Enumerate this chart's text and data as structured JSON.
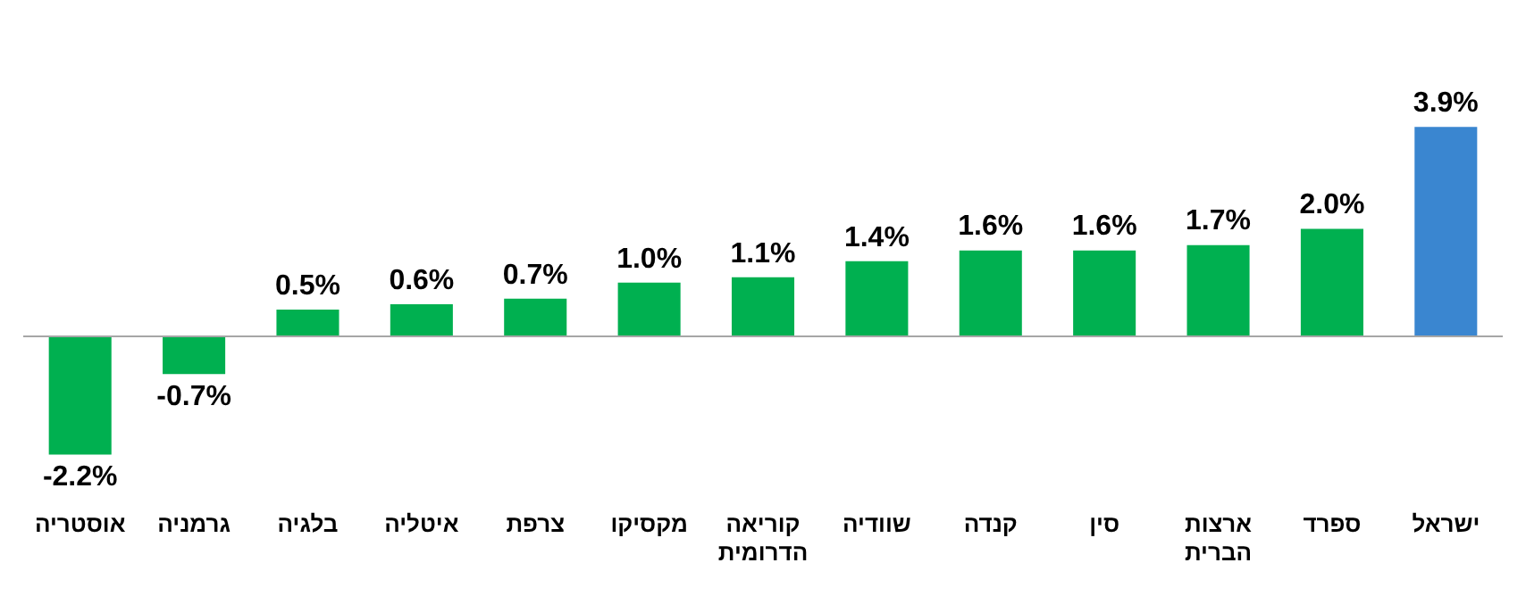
{
  "chart_data": {
    "type": "bar",
    "categories": [
      "אוסטריה",
      "גרמניה",
      "בלגיה",
      "איטליה",
      "צרפת",
      "מקסיקו",
      "קוריאה הדרומית",
      "שוודיה",
      "קנדה",
      "סין",
      "ארצות הברית",
      "ספרד",
      "ישראל"
    ],
    "values": [
      -2.2,
      -0.7,
      0.5,
      0.6,
      0.7,
      1.0,
      1.1,
      1.4,
      1.6,
      1.6,
      1.7,
      2.0,
      3.9
    ],
    "colors": [
      "#00b050",
      "#00b050",
      "#00b050",
      "#00b050",
      "#00b050",
      "#00b050",
      "#00b050",
      "#00b050",
      "#00b050",
      "#00b050",
      "#00b050",
      "#00b050",
      "#3a86d0"
    ],
    "value_labels": [
      "-2.2%",
      "-0.7%",
      "0.5%",
      "0.6%",
      "0.7%",
      "1.0%",
      "1.1%",
      "1.4%",
      "1.6%",
      "1.6%",
      "1.7%",
      "2.0%",
      "3.9%"
    ],
    "grid": false,
    "legend": false
  }
}
